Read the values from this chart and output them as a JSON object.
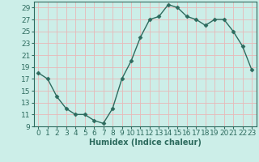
{
  "x": [
    0,
    1,
    2,
    3,
    4,
    5,
    6,
    7,
    8,
    9,
    10,
    11,
    12,
    13,
    14,
    15,
    16,
    17,
    18,
    19,
    20,
    21,
    22,
    23
  ],
  "y": [
    18.0,
    17.0,
    14.0,
    12.0,
    11.0,
    11.0,
    10.0,
    9.5,
    12.0,
    17.0,
    20.0,
    24.0,
    27.0,
    27.5,
    29.5,
    29.0,
    27.5,
    27.0,
    26.0,
    27.0,
    27.0,
    25.0,
    22.5,
    18.5
  ],
  "xlabel": "Humidex (Indice chaleur)",
  "line_color": "#2d6b5e",
  "marker": "D",
  "marker_size": 2.5,
  "bg_color": "#cceee8",
  "grid_color": "#e8b8b8",
  "xlim": [
    -0.5,
    23.5
  ],
  "ylim": [
    9,
    30
  ],
  "yticks": [
    9,
    11,
    13,
    15,
    17,
    19,
    21,
    23,
    25,
    27,
    29
  ],
  "xticks": [
    0,
    1,
    2,
    3,
    4,
    5,
    6,
    7,
    8,
    9,
    10,
    11,
    12,
    13,
    14,
    15,
    16,
    17,
    18,
    19,
    20,
    21,
    22,
    23
  ],
  "xlabel_fontsize": 7,
  "tick_fontsize": 6.5
}
